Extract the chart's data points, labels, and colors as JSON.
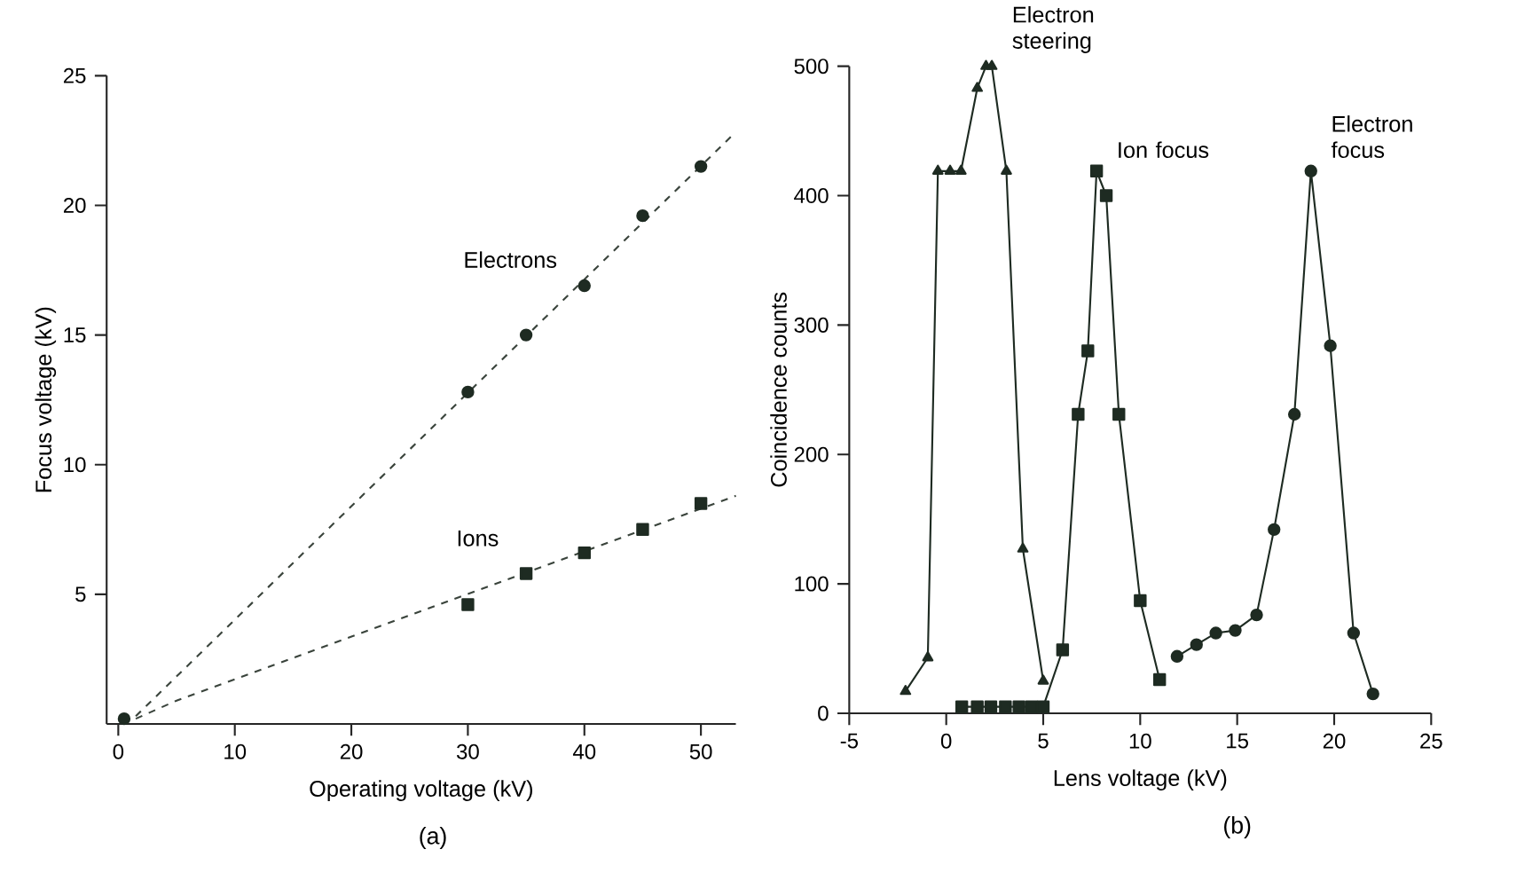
{
  "chart_data": [
    {
      "type": "scatter",
      "xlabel": "Operating voltage (kV)",
      "ylabel": "Focus voltage (kV)",
      "xlim": [
        -1,
        53
      ],
      "ylim": [
        0,
        25
      ],
      "xticks": [
        0,
        10,
        20,
        30,
        40,
        50
      ],
      "yticks": [
        5,
        10,
        15,
        20,
        25
      ],
      "grid": false,
      "legend": false,
      "annotations": [
        "(a)"
      ],
      "series": [
        {
          "name": "Electrons",
          "marker": "circle",
          "color": "#1e2b22",
          "x": [
            30,
            35,
            40,
            45,
            50
          ],
          "values": [
            12.8,
            15,
            16.9,
            19.6,
            21.5
          ]
        },
        {
          "name": "Ions",
          "marker": "square",
          "color": "#1e2b22",
          "x": [
            30,
            35,
            40,
            45,
            50
          ],
          "values": [
            4.6,
            5.8,
            6.6,
            7.5,
            8.5
          ]
        },
        {
          "marker": "circle",
          "color": "#1e2b22",
          "x": [
            0.5
          ],
          "values": [
            0.2
          ]
        },
        {
          "type": "line",
          "line_style": "dashed",
          "marker": "none",
          "color": "#3a443c",
          "x": [
            1.5,
            52.7
          ],
          "values": [
            0.3,
            22.7
          ]
        },
        {
          "type": "line",
          "line_style": "dashed",
          "marker": "none",
          "color": "#3a443c",
          "x": [
            1.5,
            5,
            53
          ],
          "values": [
            0.2,
            0.9,
            8.8
          ]
        }
      ]
    },
    {
      "type": "line",
      "xlabel": "Lens voltage (kV)",
      "ylabel": "Coincidence counts",
      "xlim": [
        -5,
        25
      ],
      "ylim": [
        0,
        500
      ],
      "xticks": [
        -5,
        0,
        5,
        10,
        15,
        20,
        25
      ],
      "yticks": [
        0,
        100,
        200,
        300,
        400,
        500
      ],
      "grid": false,
      "legend": false,
      "annotations": [
        {
          "text": "Electron steering",
          "x": 2.35,
          "y": 500
        },
        {
          "text": "Ion focus",
          "x": 7.75,
          "y": 419
        },
        {
          "text": "Electron focus",
          "x": 18.8,
          "y": 419
        },
        "(b)"
      ],
      "series": [
        {
          "marker": "triangle",
          "line_style": "solid",
          "color": "#1e2b22",
          "x": [
            -2.1,
            -0.95,
            -0.43,
            0.2,
            0.76,
            1.6,
            2.05,
            2.35,
            3.1,
            3.95,
            5.0
          ],
          "values": [
            17,
            43,
            419,
            419,
            419,
            483,
            500,
            500,
            419,
            127,
            25
          ]
        },
        {
          "marker": "square",
          "line_style": "solid",
          "color": "#1e2b22",
          "x": [
            0.8,
            1.6,
            2.3,
            3.05,
            3.75,
            4.4,
            5.0,
            6.0,
            6.8,
            7.3,
            7.75,
            8.25,
            8.9,
            10.0,
            11.0
          ],
          "values": [
            5,
            5,
            5,
            5,
            5,
            5,
            5,
            49,
            231,
            280,
            419,
            400,
            231,
            87,
            26
          ]
        },
        {
          "marker": "circle",
          "line_style": "solid",
          "color": "#1e2b22",
          "x": [
            11.9,
            12.9,
            13.9,
            14.9,
            16.0,
            16.9,
            17.95,
            18.8,
            19.8,
            21.0,
            22.0
          ],
          "values": [
            44,
            53,
            62,
            64,
            76,
            142,
            231,
            419,
            284,
            62,
            15
          ]
        }
      ]
    }
  ]
}
